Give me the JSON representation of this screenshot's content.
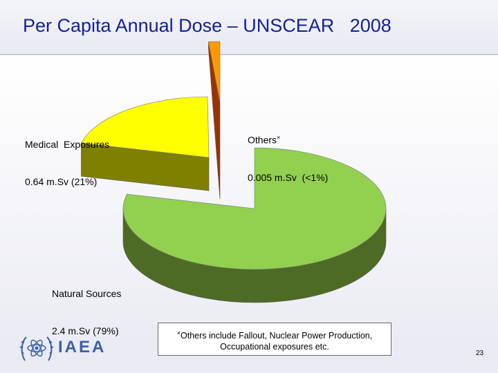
{
  "title": "Per Capita Annual Dose – UNSCEAR   2008",
  "chart_data": {
    "type": "pie",
    "title": "Per Capita Annual Dose – UNSCEAR   2008",
    "unit": "mSv",
    "slices": [
      {
        "name": "Natural Sources",
        "value": 2.4,
        "value_label": "2.4 m.Sv (79%)",
        "percent": 79,
        "color": "#92d050",
        "side_color": "#4e6b25"
      },
      {
        "name": "Medical  Exposures",
        "value": 0.64,
        "value_label": "0.64 m.Sv (21%)",
        "percent": 21,
        "color": "#ffff00",
        "side_color": "#808000"
      },
      {
        "name": "Others",
        "value": 0.005,
        "value_label": "0.005 m.Sv  (<1%)",
        "percent": 0.5,
        "color": "#ff9900",
        "side_color": "#993300"
      }
    ]
  },
  "labels": {
    "medical_line1": "Medical  Exposures",
    "medical_line2": "0.64 m.Sv (21%)",
    "others_line1": "Others",
    "others_mark": "×",
    "others_line2": "0.005 m.Sv  (<1%)",
    "natural_line1": "Natural Sources",
    "natural_line2": "2.4 m.Sv (79%)"
  },
  "footnote": {
    "mark": "×",
    "line1": "Others include Fallout, Nuclear Power Production,",
    "line2": "Occupational exposures etc."
  },
  "logo": {
    "text": "IAEA",
    "icon": "iaea-emblem-icon"
  },
  "page_number": "23"
}
